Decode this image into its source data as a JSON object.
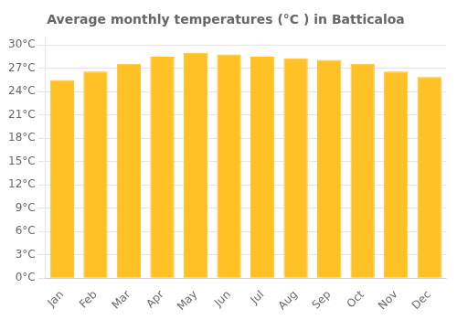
{
  "chart_data": {
    "type": "bar",
    "title": "Average monthly temperatures (°C ) in Batticaloa",
    "categories": [
      "Jan",
      "Feb",
      "Mar",
      "Apr",
      "May",
      "Jun",
      "Jul",
      "Aug",
      "Sep",
      "Oct",
      "Nov",
      "Dec"
    ],
    "values": [
      25.5,
      26.6,
      27.6,
      28.5,
      29.0,
      28.8,
      28.5,
      28.3,
      28.1,
      27.6,
      26.6,
      25.9
    ],
    "color": "#FFC125",
    "ylim": [
      0,
      31
    ],
    "yticks": [
      {
        "value": 0,
        "label": "0°C"
      },
      {
        "value": 3,
        "label": "3°C"
      },
      {
        "value": 6,
        "label": "6°C"
      },
      {
        "value": 9,
        "label": "9°C"
      },
      {
        "value": 12,
        "label": "12°C"
      },
      {
        "value": 15,
        "label": "15°C"
      },
      {
        "value": 18,
        "label": "18°C"
      },
      {
        "value": 21,
        "label": "21°C"
      },
      {
        "value": 24,
        "label": "24°C"
      },
      {
        "value": 27,
        "label": "27°C"
      },
      {
        "value": 30,
        "label": "30°C"
      }
    ],
    "grid": true
  }
}
